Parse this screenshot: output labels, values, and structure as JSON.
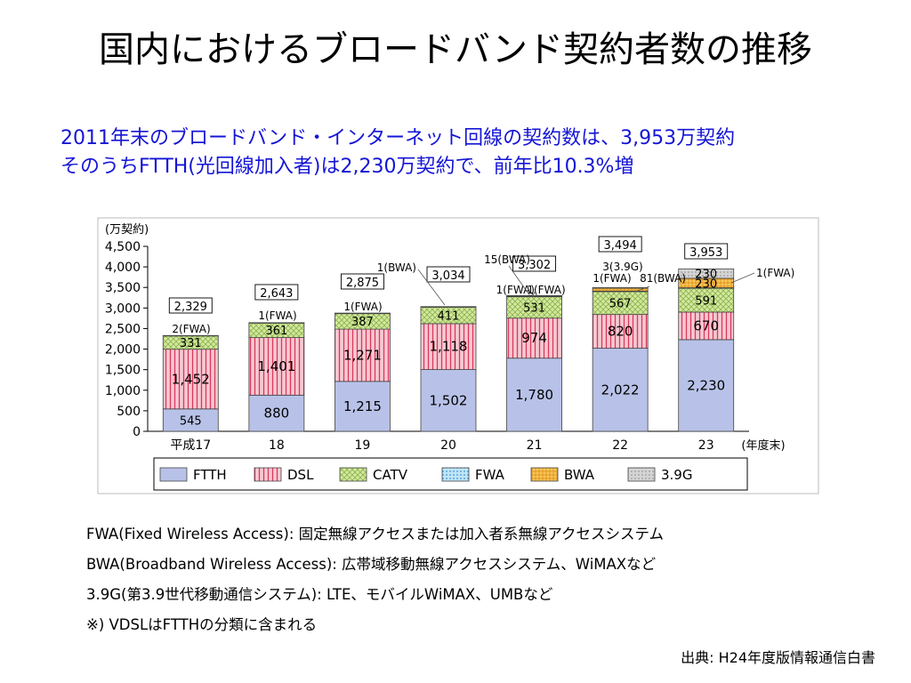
{
  "title": "国内におけるブロードバンド契約者数の推移",
  "subtitle": {
    "line1": "2011年末のブロードバンド・インターネット回線の契約数は、3,953万契約",
    "line2": "そのうちFTTH(光回線加入者)は2,230万契約で、前年比10.3%増"
  },
  "colors": {
    "FTTH": "#b8c2e8",
    "DSL": "#f2a8b8",
    "CATV": "#c9e08a",
    "FWA": "#9fd6f2",
    "BWA": "#f2b648",
    "3.9G": "#c8c8c8"
  },
  "chart_data": {
    "type": "bar",
    "stacked": true,
    "y_unit_label": "(万契約)",
    "x_unit_label": "(年度末)",
    "categories": [
      "平成17",
      "18",
      "19",
      "20",
      "21",
      "22",
      "23"
    ],
    "ylim": [
      0,
      4500
    ],
    "yticks": [
      "0",
      "500",
      "1,000",
      "1,500",
      "2,000",
      "2,500",
      "3,000",
      "3,500",
      "4,000",
      "4,500"
    ],
    "series": [
      {
        "name": "FTTH",
        "values": [
          545,
          880,
          1215,
          1502,
          1780,
          2022,
          2230
        ]
      },
      {
        "name": "DSL",
        "values": [
          1452,
          1401,
          1271,
          1118,
          974,
          820,
          670
        ]
      },
      {
        "name": "CATV",
        "values": [
          331,
          361,
          387,
          411,
          531,
          567,
          591
        ]
      },
      {
        "name": "FWA",
        "values": [
          2,
          1,
          1,
          1,
          1,
          1,
          1
        ]
      },
      {
        "name": "BWA",
        "values": [
          0,
          0,
          0,
          1,
          15,
          81,
          230
        ]
      },
      {
        "name": "3.9G",
        "values": [
          0,
          0,
          0,
          0,
          0,
          3,
          230
        ]
      }
    ],
    "segment_labels": {
      "FTTH": [
        "545",
        "880",
        "1,215",
        "1,502",
        "1,780",
        "2,022",
        "2,230"
      ],
      "DSL": [
        "1,452",
        "1,401",
        "1,271",
        "1,118",
        "974",
        "820",
        "670"
      ],
      "CATV": [
        "331",
        "361",
        "387",
        "411",
        "531",
        "567",
        "591"
      ],
      "BWA": [
        "",
        "",
        "",
        "",
        "",
        "",
        "230"
      ],
      "3.9G": [
        "",
        "",
        "",
        "",
        "",
        "",
        "230"
      ]
    },
    "totals": [
      "2,329",
      "2,643",
      "2,875",
      "3,034",
      "3,302",
      "3,494",
      "3,953"
    ],
    "annotations": [
      "2(FWA)",
      "1(FWA)",
      "1(FWA)",
      "1(BWA)",
      "1(FWA)",
      "15(BWA)",
      "1(FWA)",
      "1(FWA)",
      "3(3.9G)",
      "81(BWA)",
      "1(FWA)"
    ],
    "legend": [
      "FTTH",
      "DSL",
      "CATV",
      "FWA",
      "BWA",
      "3.9G"
    ],
    "legend_position": "bottom",
    "grid": false
  },
  "notes": [
    "FWA(Fixed Wireless Access): 固定無線アクセスまたは加入者系無線アクセスシステム",
    "BWA(Broadband Wireless Access): 広帯域移動無線アクセスシステム、WiMAXなど",
    "3.9G(第3.9世代移動通信システム): LTE、モバイルWiMAX、UMBなど",
    "※) VDSLはFTTHの分類に含まれる"
  ],
  "source": "出典: H24年度版情報通信白書"
}
